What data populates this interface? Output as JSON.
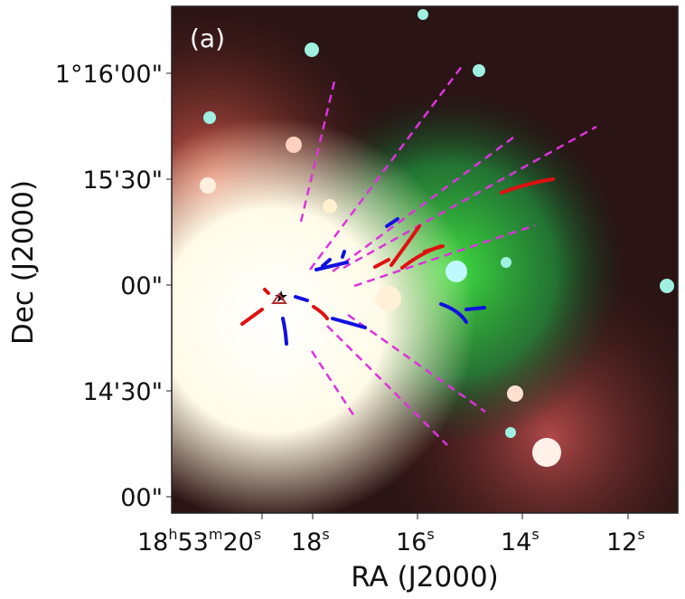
{
  "panel_label": "(a)",
  "x_axis": {
    "label": "RA (J2000)",
    "ticks": [
      {
        "h": "18",
        "m": "53",
        "s": "20"
      },
      {
        "s": "18"
      },
      {
        "s": "16"
      },
      {
        "s": "14"
      },
      {
        "s": "12"
      }
    ],
    "unit_h": "h",
    "unit_m": "m",
    "unit_s": "s"
  },
  "y_axis": {
    "label": "Dec (J2000)",
    "ticks": [
      "1°16'00\"",
      "15'30\"",
      "00\"",
      "14'30\"",
      "00\""
    ]
  },
  "colors": {
    "dashed_lines": "#dd33dd",
    "red_lobes": "#e01010",
    "blue_lobes": "#1010e0",
    "marker_star": "#000000",
    "marker_triangle": "#b03030"
  }
}
